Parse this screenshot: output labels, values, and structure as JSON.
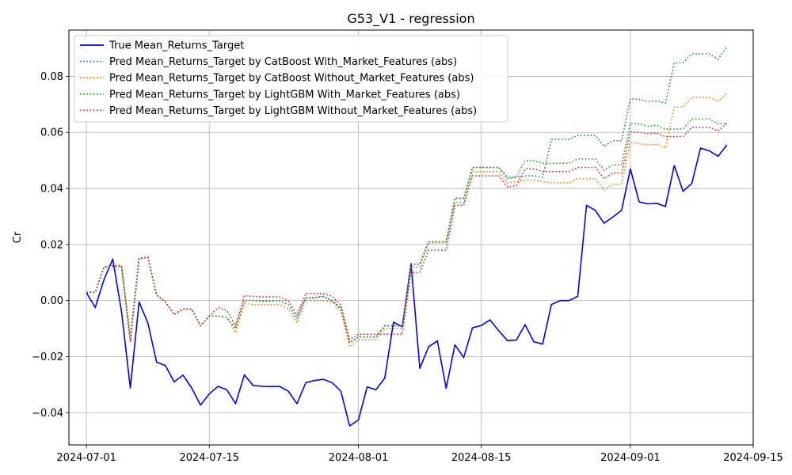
{
  "chart_data": {
    "type": "line",
    "title": "G53_V1 - regression",
    "xlabel": "",
    "ylabel": "Cr",
    "x_tick_labels": [
      "2024-07-01",
      "2024-07-15",
      "2024-08-01",
      "2024-08-15",
      "2024-09-01",
      "2024-09-15"
    ],
    "x_ticks": [
      "2024-07-01",
      "2024-07-15",
      "2024-08-01",
      "2024-08-15",
      "2024-09-01",
      "2024-09-15"
    ],
    "x_range": [
      "2024-06-29",
      "2024-09-15"
    ],
    "y_tick_labels": [
      "−0.04",
      "−0.02",
      "0.00",
      "0.02",
      "0.04",
      "0.06",
      "0.08"
    ],
    "y_ticks": [
      -0.04,
      -0.02,
      0.0,
      0.02,
      0.04,
      0.06,
      0.08
    ],
    "ylim": [
      -0.0515,
      0.0965
    ],
    "grid": true,
    "legend_position": "upper-left",
    "x": [
      "2024-07-01",
      "2024-07-02",
      "2024-07-03",
      "2024-07-04",
      "2024-07-05",
      "2024-07-06",
      "2024-07-07",
      "2024-07-08",
      "2024-07-09",
      "2024-07-10",
      "2024-07-11",
      "2024-07-12",
      "2024-07-13",
      "2024-07-14",
      "2024-07-15",
      "2024-07-16",
      "2024-07-17",
      "2024-07-18",
      "2024-07-19",
      "2024-07-20",
      "2024-07-21",
      "2024-07-22",
      "2024-07-23",
      "2024-07-24",
      "2024-07-25",
      "2024-07-26",
      "2024-07-27",
      "2024-07-28",
      "2024-07-29",
      "2024-07-30",
      "2024-07-31",
      "2024-08-01",
      "2024-08-02",
      "2024-08-03",
      "2024-08-04",
      "2024-08-05",
      "2024-08-06",
      "2024-08-07",
      "2024-08-08",
      "2024-08-09",
      "2024-08-10",
      "2024-08-11",
      "2024-08-12",
      "2024-08-13",
      "2024-08-14",
      "2024-08-15",
      "2024-08-16",
      "2024-08-17",
      "2024-08-18",
      "2024-08-19",
      "2024-08-20",
      "2024-08-21",
      "2024-08-22",
      "2024-08-23",
      "2024-08-24",
      "2024-08-25",
      "2024-08-26",
      "2024-08-27",
      "2024-08-28",
      "2024-08-29",
      "2024-08-30",
      "2024-08-31",
      "2024-09-01",
      "2024-09-02",
      "2024-09-03",
      "2024-09-04",
      "2024-09-05",
      "2024-09-06",
      "2024-09-07",
      "2024-09-08",
      "2024-09-09",
      "2024-09-10",
      "2024-09-11",
      "2024-09-12"
    ],
    "series": [
      {
        "name": "True Mean_Returns_Target",
        "color": "#0000ff",
        "style": "solid",
        "values": [
          0.0028,
          -0.0025,
          0.0075,
          0.0148,
          -0.004,
          -0.0312,
          -0.0005,
          -0.008,
          -0.022,
          -0.0232,
          -0.029,
          -0.0266,
          -0.0312,
          -0.0373,
          -0.0333,
          -0.0306,
          -0.0318,
          -0.0368,
          -0.0265,
          -0.0303,
          -0.0306,
          -0.0307,
          -0.0306,
          -0.0323,
          -0.0368,
          -0.0293,
          -0.0285,
          -0.0281,
          -0.0293,
          -0.0323,
          -0.0447,
          -0.0426,
          -0.0308,
          -0.0318,
          -0.0277,
          -0.0077,
          -0.0094,
          0.0132,
          -0.0242,
          -0.0165,
          -0.0144,
          -0.0313,
          -0.0158,
          -0.0203,
          -0.0097,
          -0.0089,
          -0.0069,
          -0.0108,
          -0.0143,
          -0.0141,
          -0.0086,
          -0.0147,
          -0.0155,
          -0.0014,
          0.0,
          0.0,
          0.0015,
          0.034,
          0.0322,
          0.0276,
          0.0298,
          0.0322,
          0.047,
          0.0352,
          0.0345,
          0.0347,
          0.0336,
          0.0482,
          0.039,
          0.0418,
          0.0544,
          0.0534,
          0.0515,
          0.0555
        ]
      },
      {
        "name": "Pred Mean_Returns_Target by CatBoost With_Market_Features (abs)",
        "color": "#1f77b4",
        "style": "dotted",
        "values": [
          0.003,
          0.003,
          0.012,
          0.0125,
          0.0125,
          -0.013,
          0.015,
          0.0155,
          0.002,
          -0.0005,
          -0.005,
          -0.003,
          -0.003,
          -0.009,
          -0.0055,
          -0.0055,
          -0.006,
          -0.01,
          0.0,
          0.0,
          0.0,
          0.0,
          0.0,
          -0.0015,
          -0.0065,
          0.001,
          0.001,
          0.0015,
          0.0,
          -0.0025,
          -0.015,
          -0.013,
          -0.013,
          -0.013,
          -0.009,
          -0.009,
          -0.009,
          0.013,
          0.013,
          0.021,
          0.021,
          0.021,
          0.0365,
          0.0365,
          0.0475,
          0.0475,
          0.0475,
          0.0475,
          0.044,
          0.044,
          0.0445,
          0.0445,
          0.044,
          0.0575,
          0.0575,
          0.0575,
          0.059,
          0.059,
          0.059,
          0.055,
          0.057,
          0.057,
          0.072,
          0.0718,
          0.071,
          0.0712,
          0.0705,
          0.0848,
          0.0848,
          0.088,
          0.088,
          0.088,
          0.0862,
          0.0905
        ]
      },
      {
        "name": "Pred Mean_Returns_Target by CatBoost Without_Market_Features (abs)",
        "color": "#ff7f0e",
        "style": "dotted",
        "values": [
          0.0028,
          0.003,
          0.0118,
          0.0122,
          0.0122,
          -0.015,
          0.015,
          0.0155,
          0.002,
          -0.0005,
          -0.005,
          -0.003,
          -0.003,
          -0.009,
          -0.0055,
          -0.0055,
          -0.006,
          -0.0115,
          -0.001,
          -0.0015,
          -0.0015,
          -0.0015,
          -0.0015,
          -0.003,
          -0.008,
          0.0,
          0.0,
          0.0,
          -0.0005,
          -0.0035,
          -0.0165,
          -0.014,
          -0.014,
          -0.014,
          -0.01,
          -0.01,
          -0.01,
          0.012,
          0.012,
          0.0205,
          0.0205,
          0.0205,
          0.035,
          0.035,
          0.046,
          0.046,
          0.046,
          0.046,
          0.042,
          0.0425,
          0.043,
          0.043,
          0.0425,
          0.042,
          0.042,
          0.042,
          0.0435,
          0.0435,
          0.0435,
          0.0395,
          0.0415,
          0.0415,
          0.0565,
          0.056,
          0.0555,
          0.0558,
          0.0545,
          0.069,
          0.069,
          0.0725,
          0.0725,
          0.0725,
          0.071,
          0.074
        ]
      },
      {
        "name": "Pred Mean_Returns_Target by LightGBM With_Market_Features (abs)",
        "color": "#2ca02c",
        "style": "dotted",
        "values": [
          0.003,
          0.003,
          0.012,
          0.0125,
          0.0125,
          -0.013,
          0.015,
          0.0155,
          0.002,
          -0.0005,
          -0.005,
          -0.003,
          -0.003,
          -0.009,
          -0.0055,
          -0.0055,
          -0.006,
          -0.01,
          0.0,
          0.0,
          -0.0003,
          -0.0003,
          0.0,
          -0.0015,
          -0.006,
          0.001,
          0.001,
          0.0015,
          0.0,
          -0.003,
          -0.015,
          -0.013,
          -0.013,
          -0.013,
          -0.009,
          -0.009,
          -0.009,
          0.013,
          0.013,
          0.021,
          0.021,
          0.021,
          0.0365,
          0.0365,
          0.0475,
          0.0475,
          0.0475,
          0.0475,
          0.0435,
          0.044,
          0.05,
          0.05,
          0.049,
          0.049,
          0.049,
          0.049,
          0.0505,
          0.0505,
          0.0505,
          0.0465,
          0.0485,
          0.0485,
          0.0632,
          0.063,
          0.0622,
          0.0625,
          0.0612,
          0.0612,
          0.0612,
          0.0648,
          0.0648,
          0.0648,
          0.063,
          0.0632
        ]
      },
      {
        "name": "Pred Mean_Returns_Target by LightGBM Without_Market_Features (abs)",
        "color": "#d62728",
        "style": "dotted",
        "values": [
          0.0028,
          0.003,
          0.0118,
          0.0122,
          0.0122,
          -0.0145,
          0.015,
          0.0155,
          0.002,
          -0.0005,
          -0.005,
          -0.003,
          -0.003,
          -0.009,
          -0.0055,
          -0.0025,
          -0.0035,
          -0.009,
          0.0018,
          0.0015,
          0.0013,
          0.0013,
          0.0013,
          0.0,
          -0.005,
          0.0025,
          0.0025,
          0.0025,
          0.0015,
          -0.0015,
          -0.014,
          -0.012,
          -0.012,
          -0.012,
          -0.012,
          -0.012,
          -0.012,
          0.01,
          0.01,
          0.018,
          0.018,
          0.018,
          0.034,
          0.034,
          0.0445,
          0.0445,
          0.0445,
          0.0445,
          0.0405,
          0.041,
          0.047,
          0.047,
          0.046,
          0.046,
          0.046,
          0.046,
          0.0475,
          0.0475,
          0.0475,
          0.0435,
          0.0455,
          0.0455,
          0.0602,
          0.06,
          0.0596,
          0.0598,
          0.0585,
          0.0585,
          0.0585,
          0.0618,
          0.0618,
          0.0618,
          0.0605,
          0.0632
        ]
      }
    ]
  }
}
